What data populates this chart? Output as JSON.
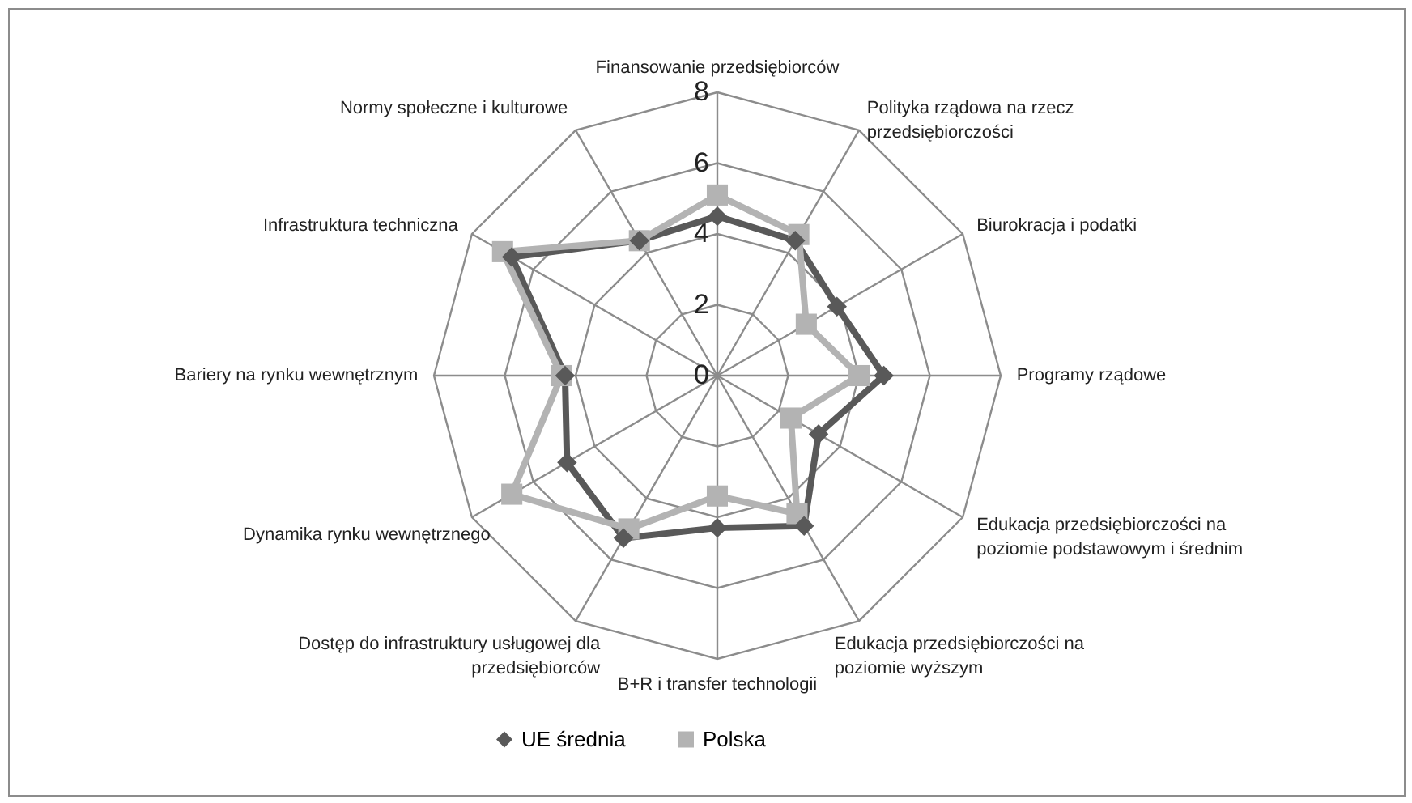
{
  "chart_data": {
    "type": "radar",
    "categories": [
      "Finansowanie przedsiębiorców",
      "Polityka rządowa na rzecz przedsiębiorczości",
      "Biurokracja i podatki",
      "Programy rządowe",
      "Edukacja przedsiębiorczości na poziomie podstawowym i średnim",
      "Edukacja przedsiębiorczości na poziomie wyższym",
      "B+R i transfer technologii",
      "Dostęp do infrastruktury usługowej dla przedsiębiorców",
      "Dynamika rynku wewnętrznego",
      "Bariery na rynku wewnętrznym",
      "Infrastruktura techniczna",
      "Normy społeczne i kulturowe"
    ],
    "series": [
      {
        "name": "UE średnia",
        "color": "#595959",
        "marker": "diamond",
        "values": [
          4.5,
          4.4,
          3.9,
          4.7,
          3.3,
          4.9,
          4.3,
          5.3,
          4.9,
          4.3,
          6.7,
          4.4
        ]
      },
      {
        "name": "Polska",
        "color": "#b3b3b3",
        "marker": "square",
        "values": [
          5.1,
          4.6,
          2.9,
          4.0,
          2.4,
          4.5,
          3.4,
          5.0,
          6.7,
          4.4,
          7.0,
          4.4
        ]
      }
    ],
    "ylim": [
      0,
      8
    ],
    "yticks": [
      0,
      2,
      4,
      6,
      8
    ],
    "grid": true,
    "legend": "bottom"
  }
}
